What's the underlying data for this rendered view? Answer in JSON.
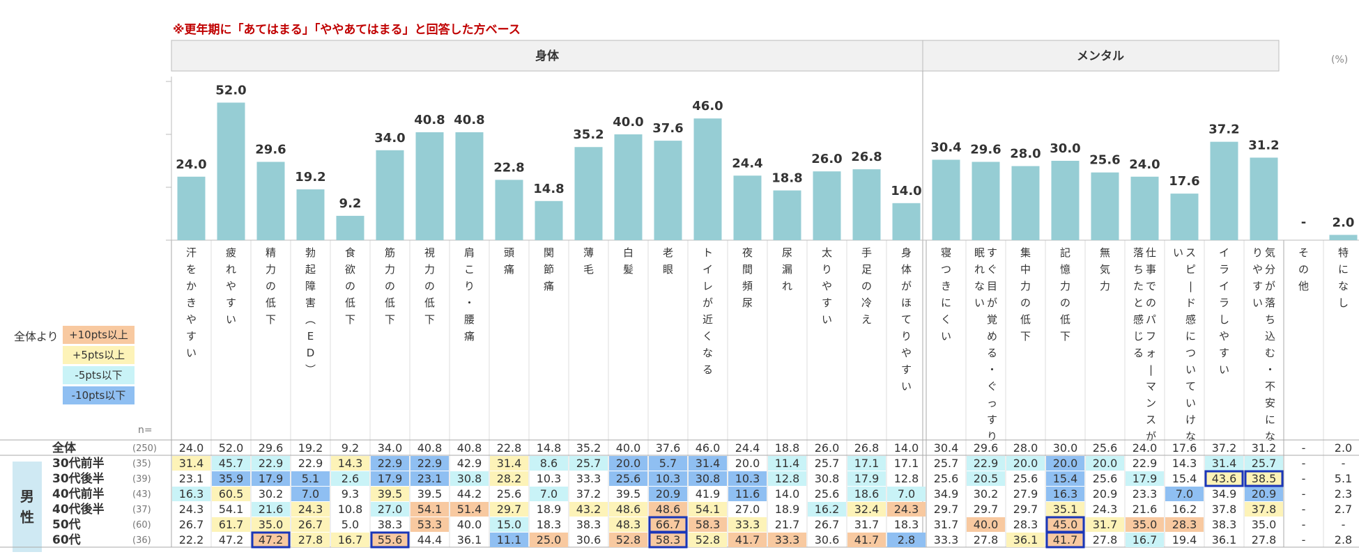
{
  "note": "※更年期に「あてはまる」「ややあてはまる」と回答した方ベース",
  "unit": "(%)",
  "groups": [
    "身体",
    "メンタル"
  ],
  "legend": {
    "title": "全体より",
    "items": [
      {
        "label": "+10pts以上",
        "color": "#f8c9a0"
      },
      {
        "label": "+5pts以上",
        "color": "#fdf3b8"
      },
      {
        "label": "-5pts以下",
        "color": "#c9f3f7"
      },
      {
        "label": "-10pts以下",
        "color": "#8fbff2"
      }
    ]
  },
  "n_label": "n=",
  "sex_label": [
    "男",
    "性"
  ],
  "chart_data": {
    "type": "bar",
    "categories": [
      "汗をかきやすい",
      "疲れやすい",
      "精力の低下",
      "勃起障害（ED）",
      "食欲の低下",
      "筋力の低下",
      "視力の低下",
      "肩こり・腰痛",
      "頭痛",
      "関節痛",
      "薄毛",
      "白髪",
      "老眼",
      "トイレが近くなる",
      "夜間頻尿",
      "尿漏れ",
      "太りやすい",
      "手足の冷え",
      "身体がほてりやすい",
      "寝つきにくい",
      "すぐ目が覚める・ぐっすり眠れない",
      "集中力の低下",
      "記憶力の低下",
      "無気力",
      "仕事でのパフォーマンスが落ちたと感じる",
      "スピード感についていけない",
      "イライラしやすい",
      "気分が落ち込む・不安になりやすい",
      "その他",
      "特になし"
    ],
    "values": [
      24.0,
      52.0,
      29.6,
      19.2,
      9.2,
      34.0,
      40.8,
      40.8,
      22.8,
      14.8,
      35.2,
      40.0,
      37.6,
      46.0,
      24.4,
      18.8,
      26.0,
      26.8,
      14.0,
      30.4,
      29.6,
      28.0,
      30.0,
      25.6,
      24.0,
      17.6,
      37.2,
      31.2,
      null,
      2.0
    ],
    "value_labels": [
      "24.0",
      "52.0",
      "29.6",
      "19.2",
      "9.2",
      "34.0",
      "40.8",
      "40.8",
      "22.8",
      "14.8",
      "35.2",
      "40.0",
      "37.6",
      "46.0",
      "24.4",
      "18.8",
      "26.0",
      "26.8",
      "14.0",
      "30.4",
      "29.6",
      "28.0",
      "30.0",
      "25.6",
      "24.0",
      "17.6",
      "37.2",
      "31.2",
      "-",
      "2.0"
    ],
    "bar_color": "#96cdd4",
    "ylim": [
      0,
      60
    ]
  },
  "table": {
    "rows": [
      {
        "label": "全体",
        "n": "(250)",
        "values": [
          "24.0",
          "52.0",
          "29.6",
          "19.2",
          "9.2",
          "34.0",
          "40.8",
          "40.8",
          "22.8",
          "14.8",
          "35.2",
          "40.0",
          "37.6",
          "46.0",
          "24.4",
          "18.8",
          "26.0",
          "26.8",
          "14.0",
          "30.4",
          "29.6",
          "28.0",
          "30.0",
          "25.6",
          "24.0",
          "17.6",
          "37.2",
          "31.2",
          "-",
          "2.0"
        ]
      },
      {
        "label": "30代前半",
        "n": "(35)",
        "values": [
          "31.4",
          "45.7",
          "22.9",
          "22.9",
          "14.3",
          "22.9",
          "22.9",
          "42.9",
          "31.4",
          "8.6",
          "25.7",
          "20.0",
          "5.7",
          "31.4",
          "20.0",
          "11.4",
          "25.7",
          "17.1",
          "17.1",
          "25.7",
          "22.9",
          "20.0",
          "20.0",
          "20.0",
          "22.9",
          "14.3",
          "31.4",
          "25.7",
          "-",
          "-"
        ]
      },
      {
        "label": "30代後半",
        "n": "(39)",
        "values": [
          "23.1",
          "35.9",
          "17.9",
          "5.1",
          "2.6",
          "17.9",
          "23.1",
          "30.8",
          "28.2",
          "10.3",
          "33.3",
          "25.6",
          "10.3",
          "30.8",
          "10.3",
          "12.8",
          "30.8",
          "17.9",
          "12.8",
          "25.6",
          "20.5",
          "25.6",
          "15.4",
          "25.6",
          "17.9",
          "15.4",
          "43.6",
          "38.5",
          "-",
          "5.1"
        ]
      },
      {
        "label": "40代前半",
        "n": "(43)",
        "values": [
          "16.3",
          "60.5",
          "30.2",
          "7.0",
          "9.3",
          "39.5",
          "39.5",
          "44.2",
          "25.6",
          "7.0",
          "37.2",
          "39.5",
          "20.9",
          "41.9",
          "11.6",
          "14.0",
          "25.6",
          "18.6",
          "7.0",
          "34.9",
          "30.2",
          "27.9",
          "16.3",
          "20.9",
          "23.3",
          "7.0",
          "34.9",
          "20.9",
          "-",
          "2.3"
        ]
      },
      {
        "label": "40代後半",
        "n": "(37)",
        "values": [
          "24.3",
          "54.1",
          "21.6",
          "24.3",
          "10.8",
          "27.0",
          "54.1",
          "51.4",
          "29.7",
          "18.9",
          "43.2",
          "48.6",
          "48.6",
          "54.1",
          "27.0",
          "18.9",
          "16.2",
          "32.4",
          "24.3",
          "29.7",
          "29.7",
          "29.7",
          "35.1",
          "24.3",
          "21.6",
          "16.2",
          "37.8",
          "37.8",
          "-",
          "2.7"
        ]
      },
      {
        "label": "50代",
        "n": "(60)",
        "values": [
          "26.7",
          "61.7",
          "35.0",
          "26.7",
          "5.0",
          "38.3",
          "53.3",
          "40.0",
          "15.0",
          "18.3",
          "38.3",
          "48.3",
          "66.7",
          "58.3",
          "33.3",
          "21.7",
          "26.7",
          "31.7",
          "18.3",
          "31.7",
          "40.0",
          "28.3",
          "45.0",
          "31.7",
          "35.0",
          "28.3",
          "38.3",
          "35.0",
          "-",
          "-"
        ]
      },
      {
        "label": "60代",
        "n": "(36)",
        "values": [
          "22.2",
          "47.2",
          "47.2",
          "27.8",
          "16.7",
          "55.6",
          "44.4",
          "36.1",
          "11.1",
          "25.0",
          "30.6",
          "52.8",
          "58.3",
          "52.8",
          "41.7",
          "33.3",
          "30.6",
          "41.7",
          "2.8",
          "33.3",
          "27.8",
          "36.1",
          "41.7",
          "27.8",
          "16.7",
          "19.4",
          "36.1",
          "27.8",
          "-",
          "2.8"
        ]
      }
    ],
    "highlight_color": "#1a36b8",
    "highlights": [
      {
        "row": 6,
        "col": 2
      },
      {
        "row": 6,
        "col": 5
      },
      {
        "row": 5,
        "col": 12
      },
      {
        "row": 6,
        "col": 12
      },
      {
        "row": 5,
        "col": 22
      },
      {
        "row": 6,
        "col": 22
      },
      {
        "row": 2,
        "col": 26
      },
      {
        "row": 2,
        "col": 27
      }
    ]
  }
}
